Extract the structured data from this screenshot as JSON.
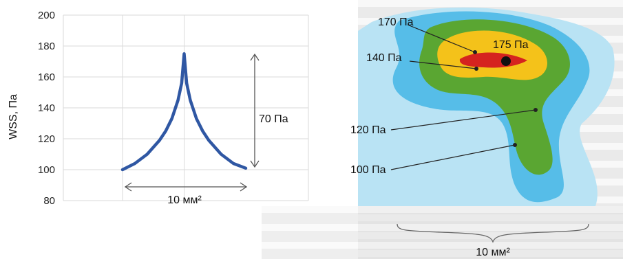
{
  "chart_data": [
    {
      "type": "line",
      "ylabel": "WSS, Па",
      "ylim": [
        80,
        200
      ],
      "yticks": [
        "200",
        "180",
        "160",
        "140",
        "120",
        "100",
        "80"
      ],
      "grid": true,
      "series": [
        {
          "x": [
            0,
            0.1,
            0.2,
            0.3,
            0.35,
            0.4,
            0.45,
            0.48,
            0.5,
            0.52,
            0.55,
            0.6,
            0.65,
            0.7,
            0.8,
            0.9,
            1.0
          ],
          "values": [
            100,
            104,
            110,
            119,
            125,
            133,
            145,
            156,
            175,
            156,
            145,
            133,
            125,
            119,
            110,
            104,
            101
          ],
          "color": "#2f57a3"
        }
      ],
      "annotations": {
        "vertical_span_label": "70 Па",
        "horizontal_span_label": "10 мм²"
      }
    },
    {
      "type": "heatmap",
      "levels": [
        {
          "label": "100 Па",
          "color": "#56bde8"
        },
        {
          "label": "120 Па",
          "color": "#5aa632"
        },
        {
          "label": "140 Па",
          "color": "#f4c21a"
        },
        {
          "label": "170 Па",
          "color": "#d5231f"
        },
        {
          "label": "175 Па",
          "color": "#111111"
        }
      ],
      "outer_color": "#b9e3f4",
      "bottom_label": "10 мм²"
    }
  ]
}
